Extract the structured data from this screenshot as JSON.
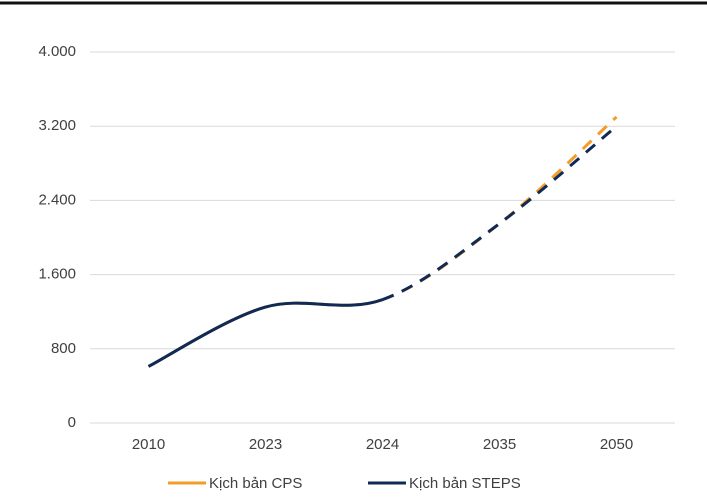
{
  "chart_data": {
    "type": "line",
    "categories": [
      "2010",
      "2023",
      "2024",
      "2035",
      "2050"
    ],
    "series": [
      {
        "name": "Kịch bản CPS",
        "color": "#f39c27",
        "values": [
          610,
          1250,
          1330,
          2150,
          3300
        ],
        "line_style": [
          "solid",
          "solid",
          "dashed",
          "dashed"
        ]
      },
      {
        "name": "Kịch bản STEPS",
        "color": "#0f2a57",
        "values": [
          610,
          1250,
          1330,
          2150,
          3200
        ],
        "line_style": [
          "solid",
          "solid",
          "dashed",
          "dashed"
        ]
      }
    ],
    "ylim": [
      0,
      4000
    ],
    "yticks": [
      0,
      800,
      {
        "value": 1600,
        "label": "1.600"
      },
      {
        "value": 2400,
        "label": "2.400"
      },
      {
        "value": 3200,
        "label": "3.200"
      },
      {
        "value": 4000,
        "label": "4.000"
      }
    ],
    "grid": true,
    "legend": "bottom"
  }
}
